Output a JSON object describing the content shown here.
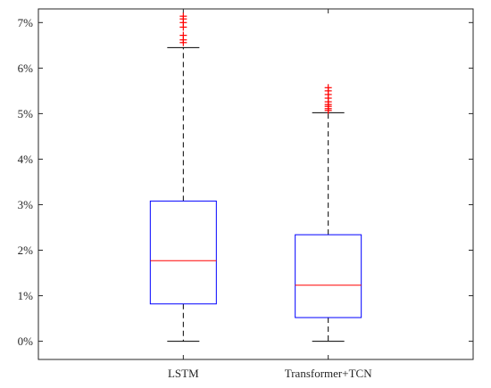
{
  "chart_data": {
    "type": "boxplot",
    "title": "",
    "xlabel": "",
    "ylabel": "",
    "categories": [
      "LSTM",
      "Transformer+TCN"
    ],
    "ylim": [
      -0.4,
      7.3
    ],
    "yticks": [
      0,
      1,
      2,
      3,
      4,
      5,
      6,
      7
    ],
    "ytick_labels": [
      "0%",
      "1%",
      "2%",
      "3%",
      "4%",
      "5%",
      "6%",
      "7%"
    ],
    "y_unit": "%",
    "grid": false,
    "boxes": [
      {
        "category": "LSTM",
        "whisker_low": 0.0,
        "q1": 0.82,
        "median": 1.77,
        "q3": 3.08,
        "whisker_high": 6.45,
        "outliers": [
          6.56,
          6.62,
          6.72,
          6.9,
          7.0,
          7.08,
          7.14
        ]
      },
      {
        "category": "Transformer+TCN",
        "whisker_low": 0.0,
        "q1": 0.52,
        "median": 1.23,
        "q3": 2.34,
        "whisker_high": 5.02,
        "outliers": [
          5.07,
          5.11,
          5.16,
          5.2,
          5.26,
          5.34,
          5.42,
          5.5,
          5.57
        ]
      }
    ],
    "colors": {
      "box": "#0000ff",
      "median": "#ff0000",
      "outlier": "#ff0000",
      "whisker": "#000000",
      "axis": "#262626"
    }
  }
}
